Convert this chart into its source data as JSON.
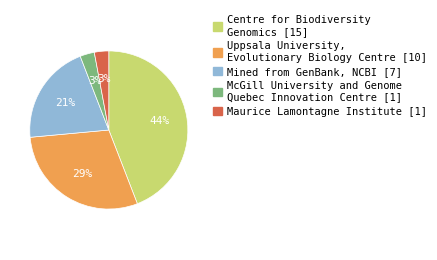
{
  "labels": [
    "Centre for Biodiversity\nGenomics [15]",
    "Uppsala University,\nEvolutionary Biology Centre [10]",
    "Mined from GenBank, NCBI [7]",
    "McGill University and Genome\nQuebec Innovation Centre [1]",
    "Maurice Lamontagne Institute [1]"
  ],
  "values": [
    15,
    10,
    7,
    1,
    1
  ],
  "colors": [
    "#c8d96f",
    "#f0a050",
    "#90b8d8",
    "#7db87d",
    "#d9644a"
  ],
  "startangle": 90,
  "background_color": "#ffffff",
  "text_color": "#ffffff",
  "autopct_fontsize": 8,
  "legend_fontsize": 7.5
}
